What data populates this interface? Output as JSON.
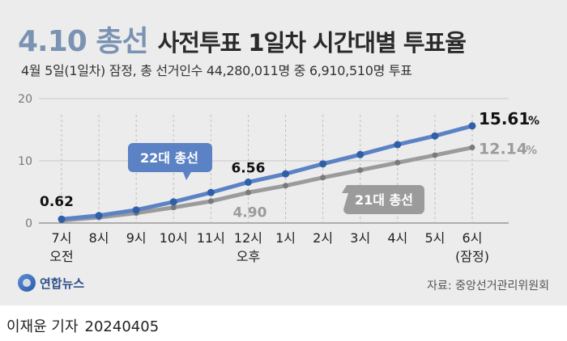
{
  "headline": {
    "brand": "4.10 총선",
    "title": "사전투표 1일차 시간대별 투표율"
  },
  "subtitle": "4월 5일(1일차) 잠정, 총 선거인수 44,280,011명 중 6,910,510명 투표",
  "chart_data": {
    "type": "line",
    "title": "사전투표 1일차 시간대별 투표율",
    "categories": [
      "7시",
      "8시",
      "9시",
      "10시",
      "11시",
      "12시",
      "1시",
      "2시",
      "3시",
      "4시",
      "5시",
      "6시"
    ],
    "sub_labels": [
      "오전",
      "",
      "",
      "",
      "",
      "오후",
      "",
      "",
      "",
      "",
      "",
      "(잠정)"
    ],
    "series": [
      {
        "name": "22대 총선",
        "values": [
          0.62,
          1.2,
          2.1,
          3.4,
          4.9,
          6.56,
          7.9,
          9.5,
          11.0,
          12.6,
          14.0,
          15.61
        ],
        "color": "#5b82c4",
        "end_label": "15.61",
        "end_unit": "%",
        "mid_label": "6.56",
        "mid_index": 5,
        "start_label": "0.62"
      },
      {
        "name": "21대 총선",
        "values": [
          0.4,
          0.9,
          1.6,
          2.5,
          3.5,
          4.9,
          6.0,
          7.3,
          8.5,
          9.7,
          10.9,
          12.14
        ],
        "color": "#9b9b9b",
        "end_label": "12.14",
        "end_unit": "%",
        "mid_label": "4.90",
        "mid_index": 5
      }
    ],
    "ylim": [
      0,
      20
    ],
    "yticks": [
      0,
      10,
      20
    ],
    "grid": true,
    "legend_placement": "callouts-on-lines"
  },
  "source_logo": "연합뉴스",
  "source": "자료: 중앙선거관리위원회",
  "footer": {
    "author": "이재윤 기자",
    "date": "20240405"
  }
}
